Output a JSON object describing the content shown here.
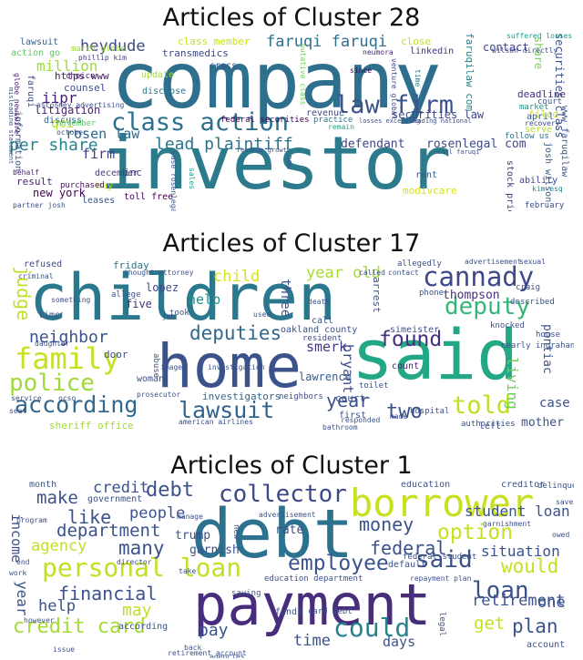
{
  "clusters": [
    {
      "title": "Articles of Cluster 28",
      "words": [
        {
          "t": "company",
          "c": "#2f6f8e"
        },
        {
          "t": "investor",
          "c": "#2b7b8d"
        },
        {
          "t": "class action",
          "c": "#2d708e"
        },
        {
          "t": "law firm",
          "c": "#3b528b"
        },
        {
          "t": "lead plaintiff",
          "c": "#2c728e"
        },
        {
          "t": "rosen law",
          "c": "#31688e"
        },
        {
          "t": "faruqi faruqi",
          "c": "#2e6e8e"
        },
        {
          "t": "per share",
          "c": "#25858e"
        },
        {
          "t": "heydude",
          "c": "#3e4989"
        },
        {
          "t": "million",
          "c": "#a0da39"
        },
        {
          "t": "defendant",
          "c": "#404688"
        },
        {
          "t": "rosenlegal com",
          "c": "#3e4a89"
        },
        {
          "t": "firm",
          "c": "#433e85"
        },
        {
          "t": "iipr",
          "c": "#481f70"
        },
        {
          "t": "qci",
          "c": "#b5de2b"
        },
        {
          "t": "securities law",
          "c": "#3f4788"
        },
        {
          "t": "litigation",
          "c": "#482173"
        },
        {
          "t": "counsel",
          "c": "#3b528b"
        },
        {
          "t": "class member",
          "c": "#c8e020"
        },
        {
          "t": "transmedics",
          "c": "#3e4989"
        },
        {
          "t": "contact",
          "c": "#414487"
        },
        {
          "t": "securities class",
          "c": "#3b528b"
        },
        {
          "t": "new york",
          "c": "#440154"
        },
        {
          "t": "linkedin",
          "c": "#46327e"
        },
        {
          "t": "close",
          "c": "#c2df23"
        },
        {
          "t": "faruqilaw com",
          "c": "#25848e"
        },
        {
          "t": "share",
          "c": "#7ad151"
        },
        {
          "t": "www faruqilaw",
          "c": "#3b528b"
        },
        {
          "t": "josh wilson",
          "c": "#365c8d"
        },
        {
          "t": "modivcare",
          "c": "#d8e219"
        },
        {
          "t": "stock price",
          "c": "#453781"
        },
        {
          "t": "newmont",
          "c": "#31688e"
        },
        {
          "t": "deadline",
          "c": "#472d7b"
        },
        {
          "t": "inc",
          "c": "#404688"
        },
        {
          "t": "result",
          "c": "#482475"
        },
        {
          "t": "information",
          "c": "#3b528b"
        },
        {
          "t": "faruqi",
          "c": "#3e4989"
        },
        {
          "t": "discuss",
          "c": "#31688e"
        },
        {
          "t": "https www",
          "c": "#471365"
        },
        {
          "t": "lawsuit",
          "c": "#33638d"
        },
        {
          "t": "action go",
          "c": "#5ec962"
        },
        {
          "t": "crocs",
          "c": "#3b528b"
        },
        {
          "t": "choice",
          "c": "#482878"
        },
        {
          "t": "update",
          "c": "#a5db36"
        },
        {
          "t": "disclose",
          "c": "#2a788e"
        },
        {
          "t": "december",
          "c": "#453882"
        },
        {
          "t": "may",
          "c": "#c0df25"
        },
        {
          "t": "toll free",
          "c": "#440154"
        },
        {
          "t": "purchased",
          "c": "#471063"
        },
        {
          "t": "leases",
          "c": "#3b528b"
        },
        {
          "t": "revenue",
          "c": "#3e4989"
        },
        {
          "t": "filed",
          "c": "#d2e21b"
        },
        {
          "t": "market",
          "c": "#20928c"
        },
        {
          "t": "april",
          "c": "#365c8d"
        },
        {
          "t": "serve",
          "c": "#b5de2b"
        },
        {
          "t": "ability",
          "c": "#404688"
        },
        {
          "t": "rent",
          "c": "#365c8d"
        },
        {
          "t": "february",
          "c": "#3e4989"
        },
        {
          "t": "follow us",
          "c": "#2c728e"
        },
        {
          "t": "court",
          "c": "#39568c"
        },
        {
          "t": "federal securities",
          "c": "#440154"
        },
        {
          "t": "march globe",
          "c": "#9fda3a"
        },
        {
          "t": "november",
          "c": "#5ec962"
        },
        {
          "t": "october",
          "c": "#3b528b"
        },
        {
          "t": "venture global",
          "c": "#404688"
        },
        {
          "t": "since",
          "c": "#440154"
        },
        {
          "t": "remain",
          "c": "#1fa088"
        },
        {
          "t": "neumora",
          "c": "#472d7b"
        },
        {
          "t": "sales",
          "c": "#1fa088"
        },
        {
          "t": "practice",
          "c": "#2a788e"
        },
        {
          "t": "new",
          "c": "#3b528b"
        },
        {
          "t": "globe newswire",
          "c": "#482475"
        },
        {
          "t": "behalf",
          "c": "#482878"
        },
        {
          "t": "phillip kim",
          "c": "#433e85"
        },
        {
          "t": "partner josh",
          "c": "#3b528b"
        },
        {
          "t": "attorney advertising",
          "c": "#3b528b"
        },
        {
          "t": "suffered losses",
          "c": "#1f9e89"
        },
        {
          "t": "wilson directly",
          "c": "#3e4989"
        },
        {
          "t": "kim esq",
          "c": "#25838e"
        },
        {
          "t": "recovery",
          "c": "#3e4989"
        },
        {
          "t": "time",
          "c": "#2a788e"
        },
        {
          "t": "putative class",
          "c": "#6ece58"
        },
        {
          "t": "case rosenlegal",
          "c": "#3b528b"
        },
        {
          "t": "revenue growth",
          "c": "#3b528b"
        },
        {
          "t": "call faruqi",
          "c": "#3b528b"
        },
        {
          "t": "leading national",
          "c": "#3b528b"
        },
        {
          "t": "losses exceeding",
          "c": "#3b528b"
        },
        {
          "t": "misleading statement",
          "c": "#3b528b"
        }
      ]
    },
    {
      "title": "Articles of Cluster 17",
      "words": [
        {
          "t": "children",
          "c": "#2a788e"
        },
        {
          "t": "home",
          "c": "#3b528b"
        },
        {
          "t": "said",
          "c": "#22a884"
        },
        {
          "t": "cannady",
          "c": "#3e4989"
        },
        {
          "t": "deputy",
          "c": "#35b779"
        },
        {
          "t": "family",
          "c": "#c8e020"
        },
        {
          "t": "police",
          "c": "#9fda3a"
        },
        {
          "t": "according",
          "c": "#31688e"
        },
        {
          "t": "lawsuit",
          "c": "#33638d"
        },
        {
          "t": "deputies",
          "c": "#31688e"
        },
        {
          "t": "found",
          "c": "#46327e"
        },
        {
          "t": "judge",
          "c": "#c2df23"
        },
        {
          "t": "neighbor",
          "c": "#3b528b"
        },
        {
          "t": "told",
          "c": "#bddf26"
        },
        {
          "t": "two",
          "c": "#3b528b"
        },
        {
          "t": "year",
          "c": "#3b528b"
        },
        {
          "t": "year old",
          "c": "#a5db36"
        },
        {
          "t": "child",
          "c": "#d8e219"
        },
        {
          "t": "help",
          "c": "#20928c"
        },
        {
          "t": "smerk",
          "c": "#443a83"
        },
        {
          "t": "bryant",
          "c": "#3e4989"
        },
        {
          "t": "living",
          "c": "#6ece58"
        },
        {
          "t": "pontiac",
          "c": "#3b528b"
        },
        {
          "t": "case",
          "c": "#3b528b"
        },
        {
          "t": "mother",
          "c": "#3b528b"
        },
        {
          "t": "thompson",
          "c": "#46327e"
        },
        {
          "t": "three",
          "c": "#3b528b"
        },
        {
          "t": "lopez",
          "c": "#3e4989"
        },
        {
          "t": "five",
          "c": "#472d7b"
        },
        {
          "t": "investigators",
          "c": "#31688e"
        },
        {
          "t": "lawrence",
          "c": "#365c8d"
        },
        {
          "t": "sheriff office",
          "c": "#9fda3a"
        },
        {
          "t": "woman",
          "c": "#3b528b"
        },
        {
          "t": "neighbors",
          "c": "#3e4989"
        },
        {
          "t": "friday",
          "c": "#2a788e"
        },
        {
          "t": "refused",
          "c": "#3e4989"
        },
        {
          "t": "door",
          "c": "#3b528b"
        },
        {
          "t": "court",
          "c": "#3b528b"
        },
        {
          "t": "count",
          "c": "#482475"
        },
        {
          "t": "oakland county",
          "c": "#3b528b"
        },
        {
          "t": "resident",
          "c": "#3e4989"
        },
        {
          "t": "simeister",
          "c": "#3b528b"
        },
        {
          "t": "arrest",
          "c": "#3b528b"
        },
        {
          "t": "first",
          "c": "#3b528b"
        },
        {
          "t": "left",
          "c": "#3b528b"
        },
        {
          "t": "call",
          "c": "#3b528b"
        },
        {
          "t": "time",
          "c": "#3b528b"
        },
        {
          "t": "abuse",
          "c": "#3b528b"
        },
        {
          "t": "took",
          "c": "#3b528b"
        },
        {
          "t": "allege",
          "c": "#3b528b"
        },
        {
          "t": "allegedly",
          "c": "#3b528b"
        },
        {
          "t": "phone",
          "c": "#3b528b"
        },
        {
          "t": "craig",
          "c": "#3b528b"
        },
        {
          "t": "described",
          "c": "#3b528b"
        },
        {
          "t": "knocked",
          "c": "#3b528b"
        },
        {
          "t": "house",
          "c": "#3b528b"
        },
        {
          "t": "nearly",
          "c": "#3b528b"
        },
        {
          "t": "ingrahan",
          "c": "#3b528b"
        },
        {
          "t": "authorities",
          "c": "#3b528b"
        },
        {
          "t": "hospital",
          "c": "#3b528b"
        },
        {
          "t": "toilet",
          "c": "#3b528b"
        },
        {
          "t": "daughter",
          "c": "#3b528b"
        },
        {
          "t": "criminal",
          "c": "#3b528b"
        },
        {
          "t": "thought",
          "c": "#3b528b"
        },
        {
          "t": "attorney",
          "c": "#3b528b"
        },
        {
          "t": "called",
          "c": "#3b528b"
        },
        {
          "t": "contact",
          "c": "#3b528b"
        },
        {
          "t": "death",
          "c": "#3b528b"
        },
        {
          "t": "advertisement",
          "c": "#3b528b"
        },
        {
          "t": "sexual",
          "c": "#3b528b"
        },
        {
          "t": "something",
          "c": "#3b528b"
        },
        {
          "t": "prosecutor",
          "c": "#3b528b"
        },
        {
          "t": "service",
          "c": "#3b528b"
        },
        {
          "t": "seat",
          "c": "#3b528b"
        },
        {
          "t": "ocso",
          "c": "#3b528b"
        },
        {
          "t": "american airlines",
          "c": "#3b528b"
        },
        {
          "t": "bathroom",
          "c": "#3b528b"
        },
        {
          "t": "images",
          "c": "#3b528b"
        },
        {
          "t": "investigation",
          "c": "#3b528b"
        },
        {
          "t": "jan",
          "c": "#3b528b"
        },
        {
          "t": "used",
          "c": "#3b528b"
        },
        {
          "t": "responded",
          "c": "#3b528b"
        },
        {
          "t": "made",
          "c": "#3b528b"
        }
      ]
    },
    {
      "title": "Articles of Cluster 1",
      "words": [
        {
          "t": "debt",
          "c": "#2c728e"
        },
        {
          "t": "payment",
          "c": "#472d7b"
        },
        {
          "t": "borrower",
          "c": "#c8e020"
        },
        {
          "t": "collector",
          "c": "#3e4989"
        },
        {
          "t": "personal loan",
          "c": "#c2df23"
        },
        {
          "t": "said",
          "c": "#3b528b"
        },
        {
          "t": "loan",
          "c": "#3b528b"
        },
        {
          "t": "could",
          "c": "#25838e"
        },
        {
          "t": "employee",
          "c": "#3b528b"
        },
        {
          "t": "credit card",
          "c": "#a5db36"
        },
        {
          "t": "option",
          "c": "#c8e020"
        },
        {
          "t": "federal",
          "c": "#3b528b"
        },
        {
          "t": "money",
          "c": "#3b528b"
        },
        {
          "t": "department",
          "c": "#3b528b"
        },
        {
          "t": "people",
          "c": "#3b528b"
        },
        {
          "t": "financial",
          "c": "#3b528b"
        },
        {
          "t": "many",
          "c": "#3b528b"
        },
        {
          "t": "like",
          "c": "#3b528b"
        },
        {
          "t": "make",
          "c": "#3b528b"
        },
        {
          "t": "credit",
          "c": "#3b528b"
        },
        {
          "t": "debt",
          "c": "#3b528b"
        },
        {
          "t": "agency",
          "c": "#c2df23"
        },
        {
          "t": "may",
          "c": "#c2df23"
        },
        {
          "t": "help",
          "c": "#3b528b"
        },
        {
          "t": "pay",
          "c": "#3b528b"
        },
        {
          "t": "time",
          "c": "#3b528b"
        },
        {
          "t": "get",
          "c": "#c2df23"
        },
        {
          "t": "plan",
          "c": "#3b528b"
        },
        {
          "t": "days",
          "c": "#3b528b"
        },
        {
          "t": "one",
          "c": "#3b528b"
        },
        {
          "t": "would",
          "c": "#c8e020"
        },
        {
          "t": "student loan",
          "c": "#3b528b"
        },
        {
          "t": "situation",
          "c": "#3b528b"
        },
        {
          "t": "retirement",
          "c": "#3b528b"
        },
        {
          "t": "year",
          "c": "#3b528b"
        },
        {
          "t": "income",
          "c": "#3b528b"
        },
        {
          "t": "trump",
          "c": "#3b528b"
        },
        {
          "t": "garnish",
          "c": "#3b528b"
        },
        {
          "t": "rate",
          "c": "#3b528b"
        },
        {
          "t": "education",
          "c": "#3b528b"
        },
        {
          "t": "creditor",
          "c": "#3b528b"
        },
        {
          "t": "month",
          "c": "#3b528b"
        },
        {
          "t": "government",
          "c": "#3b528b"
        },
        {
          "t": "funds",
          "c": "#3b528b"
        },
        {
          "t": "according",
          "c": "#3b528b"
        },
        {
          "t": "account",
          "c": "#3b528b"
        },
        {
          "t": "default",
          "c": "#3b528b"
        },
        {
          "t": "card debt",
          "c": "#3b528b"
        },
        {
          "t": "education department",
          "c": "#3b528b"
        },
        {
          "t": "delinquent",
          "c": "#3b528b"
        },
        {
          "t": "federal student",
          "c": "#3b528b"
        },
        {
          "t": "retirement account",
          "c": "#3b528b"
        },
        {
          "t": "agencies",
          "c": "#3b528b"
        },
        {
          "t": "new",
          "c": "#3b528b"
        },
        {
          "t": "legal",
          "c": "#3b528b"
        },
        {
          "t": "work",
          "c": "#3b528b"
        },
        {
          "t": "end",
          "c": "#3b528b"
        },
        {
          "t": "saving",
          "c": "#3b528b"
        },
        {
          "t": "take",
          "c": "#3b528b"
        },
        {
          "t": "director",
          "c": "#3b528b"
        },
        {
          "t": "however",
          "c": "#3b528b"
        },
        {
          "t": "program",
          "c": "#3b528b"
        },
        {
          "t": "advertisement",
          "c": "#3b528b"
        },
        {
          "t": "manage",
          "c": "#3b528b"
        },
        {
          "t": "repayment plan",
          "c": "#3b528b"
        },
        {
          "t": "garnishment",
          "c": "#3b528b"
        },
        {
          "t": "owed",
          "c": "#3b528b"
        },
        {
          "t": "save",
          "c": "#3b528b"
        },
        {
          "t": "issue",
          "c": "#3b528b"
        },
        {
          "t": "back",
          "c": "#3b528b"
        }
      ]
    }
  ]
}
